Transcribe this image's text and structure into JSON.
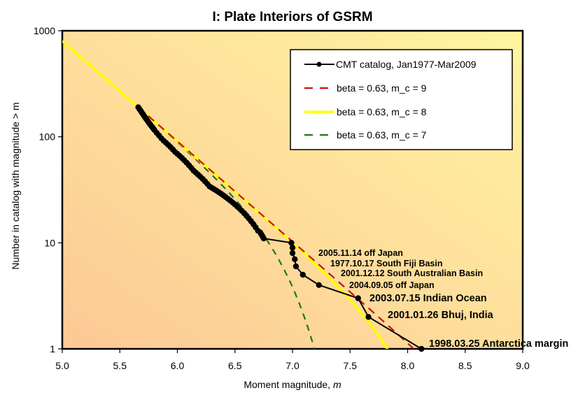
{
  "chart_data": {
    "type": "line",
    "title": "I: Plate Interiors of GSRM",
    "xlabel": "Moment magnitude, ",
    "xlabel_italic": "m",
    "ylabel": "Number in catalog with magnitude >  m",
    "xlim": [
      5.0,
      9.0
    ],
    "ylim": [
      1,
      1000
    ],
    "yscale": "log",
    "grid": false,
    "legend_position": "top-right",
    "x_ticks": [
      "5.0",
      "5.5",
      "6.0",
      "6.5",
      "7.0",
      "7.5",
      "8.0",
      "8.5",
      "9.0"
    ],
    "x_tick_values": [
      5.0,
      5.5,
      6.0,
      6.5,
      7.0,
      7.5,
      8.0,
      8.5,
      9.0
    ],
    "y_ticks": [
      "1",
      "10",
      "100",
      "1000"
    ],
    "y_tick_values": [
      1,
      10,
      100,
      1000
    ],
    "background_gradient": [
      "#fdc896",
      "#fef5a0"
    ],
    "series": [
      {
        "name": "CMT catalog, Jan1977-Mar2009",
        "style": "solid-markers",
        "color": "#000000",
        "x": [
          5.66,
          5.67,
          5.68,
          5.69,
          5.7,
          5.71,
          5.72,
          5.73,
          5.74,
          5.75,
          5.76,
          5.77,
          5.78,
          5.79,
          5.8,
          5.82,
          5.84,
          5.86,
          5.88,
          5.9,
          5.92,
          5.94,
          5.96,
          5.98,
          6.0,
          6.02,
          6.04,
          6.06,
          6.08,
          6.1,
          6.12,
          6.14,
          6.16,
          6.18,
          6.2,
          6.22,
          6.24,
          6.26,
          6.28,
          6.3,
          6.32,
          6.34,
          6.36,
          6.38,
          6.4,
          6.42,
          6.44,
          6.46,
          6.48,
          6.5,
          6.52,
          6.54,
          6.56,
          6.58,
          6.6,
          6.62,
          6.64,
          6.66,
          6.68,
          6.7,
          6.72,
          6.73,
          6.74,
          6.75,
          6.99,
          7.0,
          7.0,
          7.02,
          7.03,
          7.09,
          7.23,
          7.57,
          7.66,
          8.12
        ],
        "y": [
          190,
          183,
          177,
          170,
          164,
          158,
          152,
          147,
          142,
          137,
          132,
          128,
          124,
          120,
          116,
          109,
          103,
          97,
          92,
          88,
          84,
          80,
          76,
          72,
          69,
          66,
          63,
          60,
          57,
          54,
          51,
          48,
          46,
          44,
          42,
          40,
          38,
          36,
          34,
          33,
          32,
          31,
          30,
          29,
          28,
          27,
          26,
          25,
          24,
          23,
          22,
          21,
          20,
          19,
          18,
          17,
          16,
          15,
          14,
          13,
          12.5,
          12,
          11.5,
          11,
          10,
          9,
          8,
          7,
          6,
          5,
          4,
          3,
          2,
          1
        ]
      },
      {
        "name": "beta = 0.63, m_c = 9",
        "style": "dashed",
        "color": "#cc1111",
        "beta": 0.63,
        "m_c": 9,
        "anchor_m": 5.66,
        "anchor_n": 190,
        "x_range": [
          5.66,
          8.12
        ]
      },
      {
        "name": "beta = 0.63, m_c = 8",
        "style": "solid",
        "color": "#ffff00",
        "beta": 0.63,
        "m_c": 8,
        "anchor_m": 5.66,
        "anchor_n": 190,
        "x_range": [
          5.0,
          7.84
        ]
      },
      {
        "name": "beta = 0.63, m_c = 7",
        "style": "dashed",
        "color": "#1b7a12",
        "beta": 0.63,
        "m_c": 7,
        "anchor_m": 5.66,
        "anchor_n": 190,
        "x_range": [
          5.0,
          7.19
        ]
      }
    ],
    "annotations": [
      {
        "text": "2005.11.14 off Japan",
        "x": 7.0,
        "y": 10,
        "size": "small"
      },
      {
        "text": "1977.10.17 South Fiji Basin",
        "x": 7.0,
        "y": 8,
        "size": "small"
      },
      {
        "text": "2001.12.12 South Australian Basin",
        "x": 7.03,
        "y": 6,
        "size": "small"
      },
      {
        "text": "2004.09.05 off Japan",
        "x": 7.09,
        "y": 5,
        "size": "small"
      },
      {
        "text": "2003.07.15 Indian Ocean",
        "x": 7.57,
        "y": 3,
        "size": "large"
      },
      {
        "text": "2001.01.26 Bhuj, India",
        "x": 7.66,
        "y": 2,
        "size": "large"
      },
      {
        "text": "1998.03.25 Antarctica margin",
        "x": 8.12,
        "y": 1,
        "size": "large"
      }
    ]
  }
}
